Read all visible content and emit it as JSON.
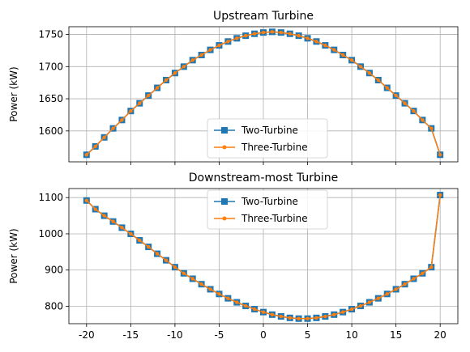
{
  "chart_data": [
    {
      "type": "line",
      "title": "Upstream Turbine",
      "xlabel": "",
      "ylabel": "Power (kW)",
      "xlim": [
        -22,
        22
      ],
      "ylim": [
        1552,
        1762
      ],
      "x_ticks": [
        -20,
        -15,
        -10,
        -5,
        0,
        5,
        10,
        15,
        20
      ],
      "show_x_tick_labels": false,
      "y_ticks": [
        1600,
        1650,
        1700,
        1750
      ],
      "grid": true,
      "legend_position": "lower center",
      "x": [
        -20,
        -19,
        -18,
        -17,
        -16,
        -15,
        -14,
        -13,
        -12,
        -11,
        -10,
        -9,
        -8,
        -7,
        -6,
        -5,
        -4,
        -3,
        -2,
        -1,
        0,
        1,
        2,
        3,
        4,
        5,
        6,
        7,
        8,
        9,
        10,
        11,
        12,
        13,
        14,
        15,
        16,
        17,
        18,
        19,
        20
      ],
      "series": [
        {
          "name": "Two-Turbine",
          "color": "#1f77b4",
          "marker": "square",
          "values": [
            1563,
            1576,
            1590,
            1604,
            1617,
            1631,
            1643,
            1655,
            1667,
            1679,
            1690,
            1700,
            1710,
            1718,
            1726,
            1733,
            1739,
            1744,
            1748,
            1751,
            1753,
            1754,
            1753,
            1751,
            1748,
            1744,
            1739,
            1733,
            1726,
            1718,
            1710,
            1700,
            1690,
            1679,
            1667,
            1655,
            1643,
            1631,
            1617,
            1604,
            1563
          ]
        },
        {
          "name": "Three-Turbine",
          "color": "#ff7f0e",
          "marker": "dot",
          "values": [
            1563,
            1576,
            1590,
            1604,
            1617,
            1631,
            1643,
            1655,
            1667,
            1679,
            1690,
            1700,
            1710,
            1718,
            1726,
            1733,
            1739,
            1744,
            1748,
            1751,
            1753,
            1754,
            1753,
            1751,
            1748,
            1744,
            1739,
            1733,
            1726,
            1718,
            1710,
            1700,
            1690,
            1679,
            1667,
            1655,
            1643,
            1631,
            1617,
            1604,
            1563
          ]
        }
      ]
    },
    {
      "type": "line",
      "title": "Downstream-most Turbine",
      "xlabel": "",
      "ylabel": "Power (kW)",
      "xlim": [
        -22,
        22
      ],
      "ylim": [
        752,
        1125
      ],
      "x_ticks": [
        -20,
        -15,
        -10,
        -5,
        0,
        5,
        10,
        15,
        20
      ],
      "show_x_tick_labels": true,
      "y_ticks": [
        800,
        900,
        1000,
        1100
      ],
      "grid": true,
      "legend_position": "upper center",
      "x": [
        -20,
        -19,
        -18,
        -17,
        -16,
        -15,
        -14,
        -13,
        -12,
        -11,
        -10,
        -9,
        -8,
        -7,
        -6,
        -5,
        -4,
        -3,
        -2,
        -1,
        0,
        1,
        2,
        3,
        4,
        5,
        6,
        7,
        8,
        9,
        10,
        11,
        12,
        13,
        14,
        15,
        16,
        17,
        18,
        19,
        20
      ],
      "series": [
        {
          "name": "Two-Turbine",
          "color": "#1f77b4",
          "marker": "square",
          "values": [
            1092,
            1068,
            1050,
            1034,
            1017,
            1000,
            982,
            964,
            945,
            927,
            908,
            891,
            876,
            861,
            847,
            834,
            822,
            811,
            801,
            792,
            784,
            777,
            772,
            768,
            766,
            766,
            768,
            772,
            777,
            784,
            792,
            801,
            811,
            822,
            834,
            847,
            861,
            876,
            891,
            908,
            1107
          ]
        },
        {
          "name": "Three-Turbine",
          "color": "#ff7f0e",
          "marker": "dot",
          "values": [
            1092,
            1068,
            1050,
            1034,
            1017,
            1000,
            982,
            964,
            945,
            927,
            908,
            891,
            876,
            861,
            847,
            834,
            822,
            811,
            801,
            792,
            784,
            777,
            772,
            768,
            766,
            766,
            768,
            772,
            777,
            784,
            792,
            801,
            811,
            822,
            834,
            847,
            861,
            876,
            891,
            908,
            1107
          ]
        }
      ]
    }
  ]
}
